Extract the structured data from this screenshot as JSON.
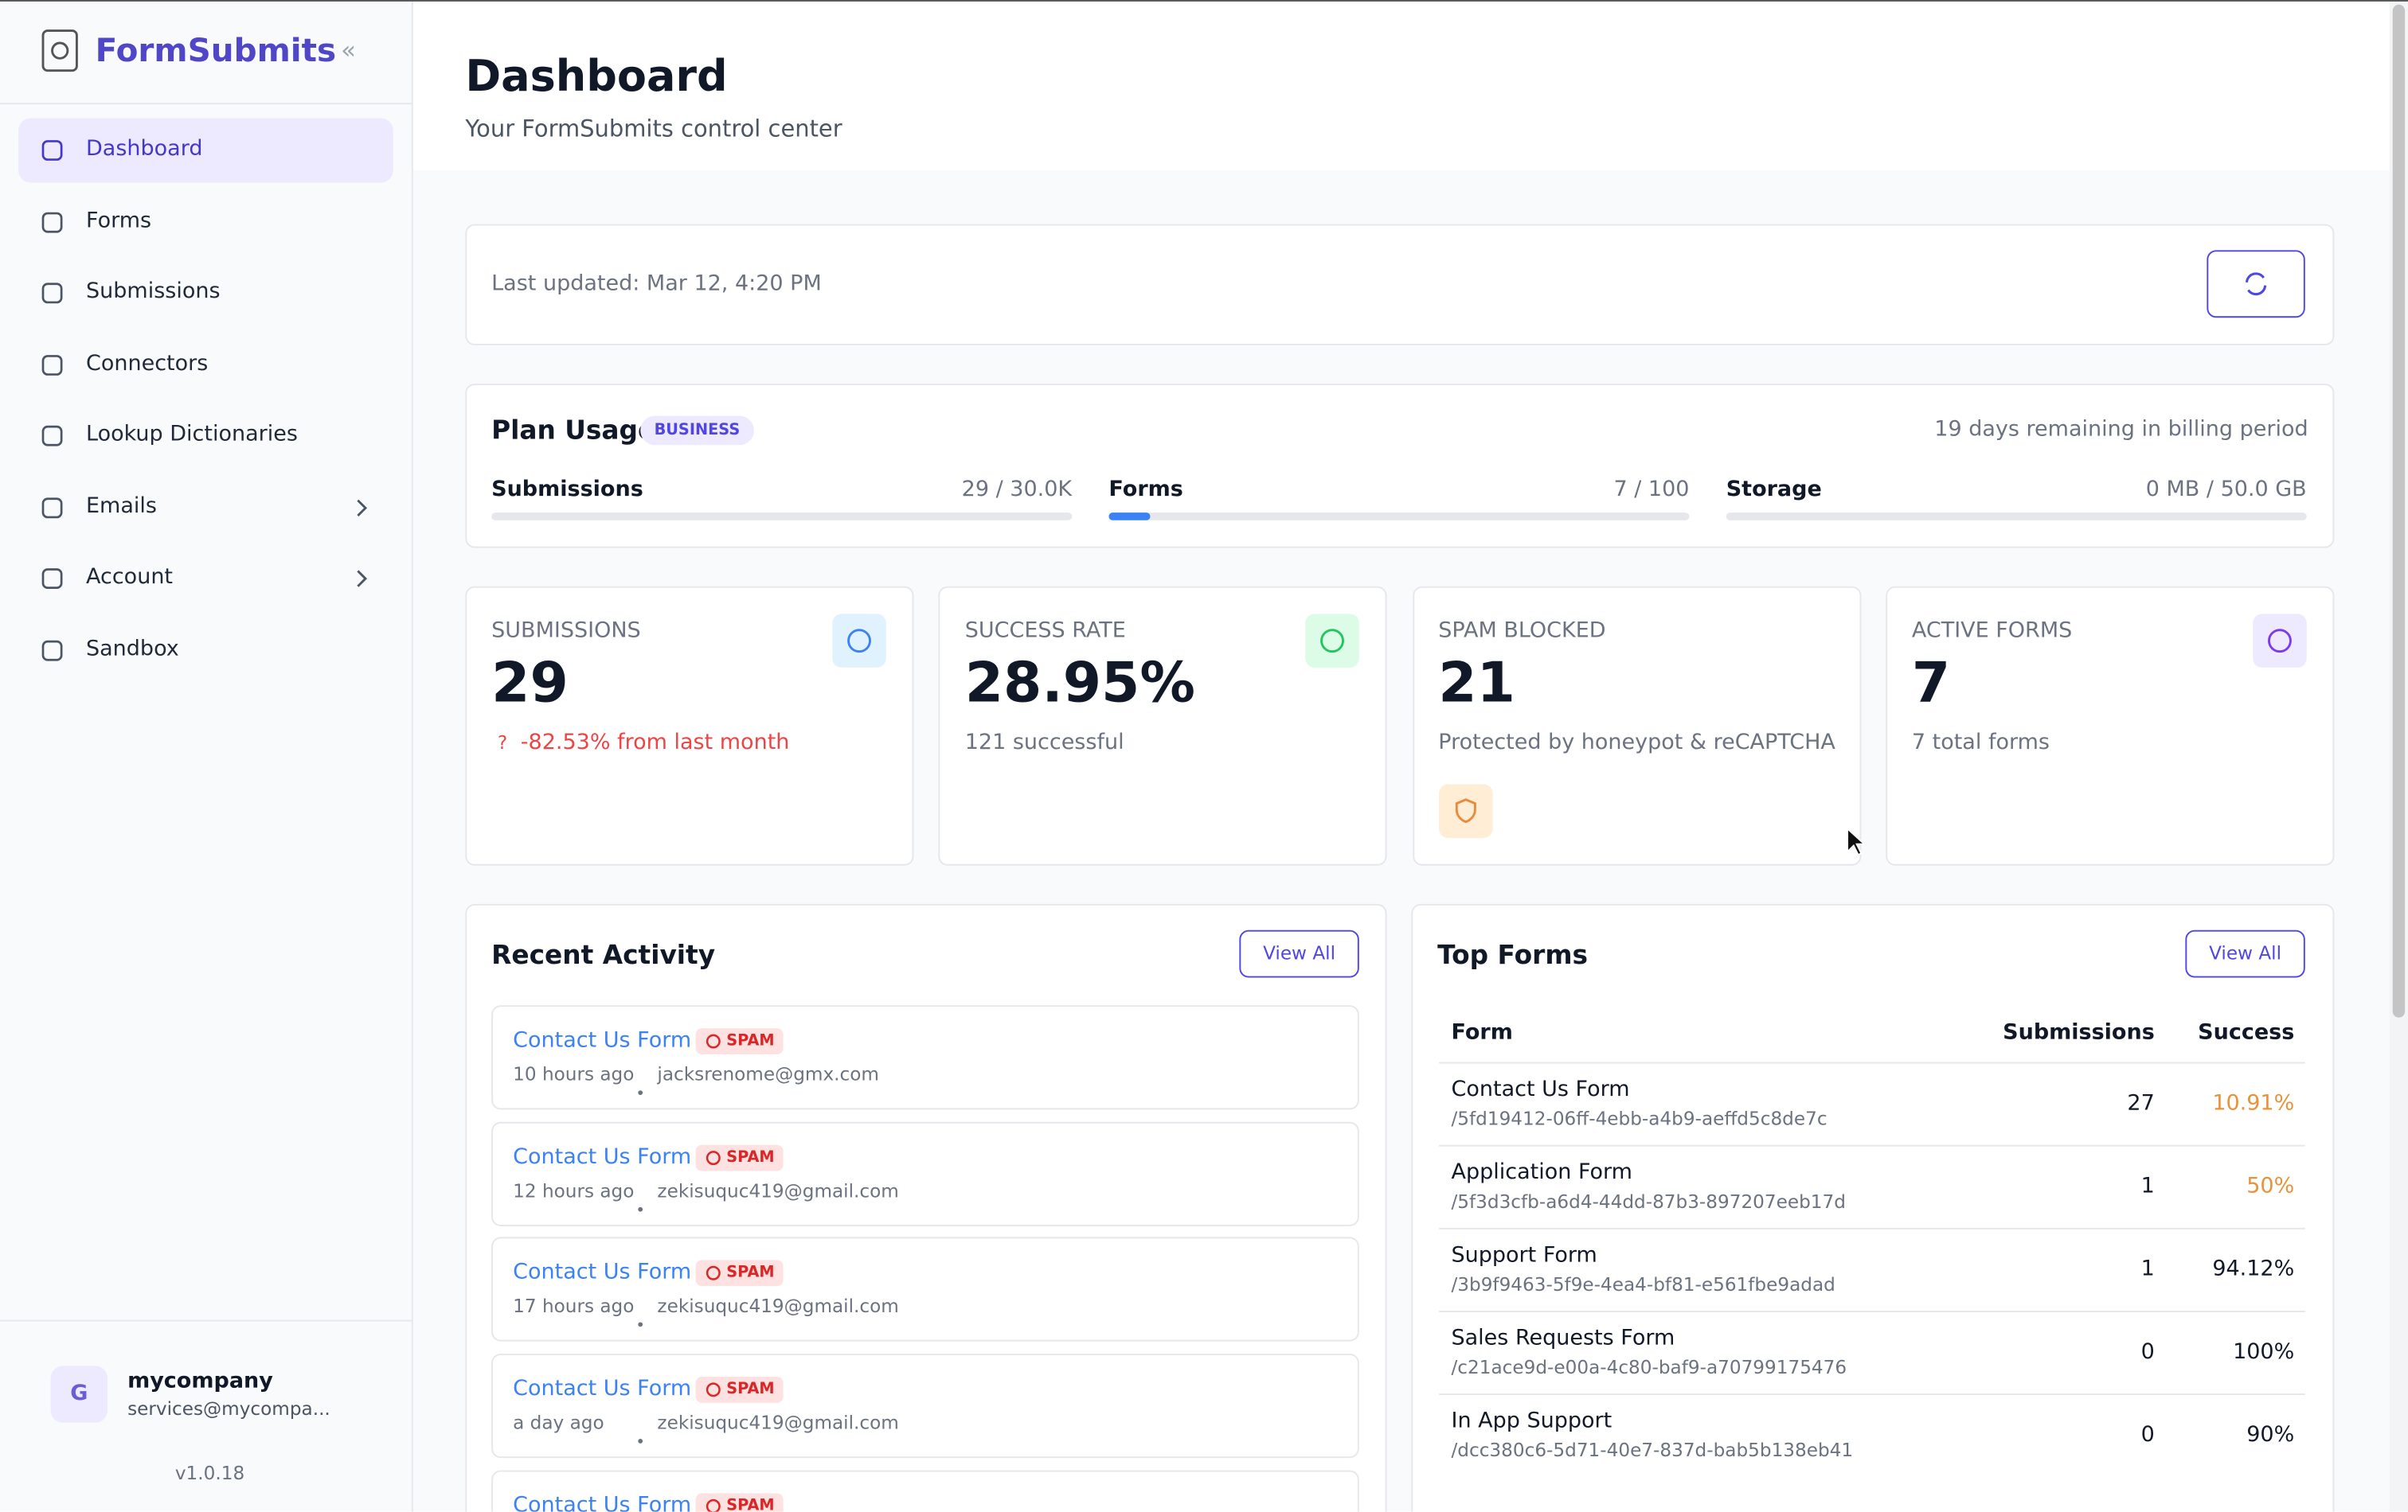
{
  "sidebar": {
    "brand": "FormSubmits",
    "nav": [
      {
        "label": "Dashboard"
      },
      {
        "label": "Forms"
      },
      {
        "label": "Submissions"
      },
      {
        "label": "Connectors"
      },
      {
        "label": "Lookup Dictionaries"
      },
      {
        "label": "Emails"
      },
      {
        "label": "Account"
      },
      {
        "label": "Sandbox"
      }
    ],
    "user": {
      "initial": "G",
      "name": "mycompany",
      "email": "services@mycompa..."
    },
    "version": "v1.0.18"
  },
  "header": {
    "title": "Dashboard",
    "subtitle": "Your FormSubmits control center"
  },
  "last_updated": "Last updated: Mar 12, 4:20 PM",
  "plan": {
    "title": "Plan Usage",
    "badge": "BUSINESS",
    "remaining": "19 days remaining in billing period",
    "items": [
      {
        "label": "Submissions",
        "usage": "29 / 30.0K"
      },
      {
        "label": "Forms",
        "usage": "7 / 100"
      },
      {
        "label": "Storage",
        "usage": "0 MB / 50.0 GB"
      }
    ]
  },
  "stats": [
    {
      "label": "SUBMISSIONS",
      "value": "29",
      "note_icon": "?",
      "note": "-82.53% from last month"
    },
    {
      "label": "SUCCESS RATE",
      "value": "28.95%",
      "note": "121 successful"
    },
    {
      "label": "SPAM BLOCKED",
      "value": "21",
      "note": "Protected by honeypot & reCAPTCHA"
    },
    {
      "label": "ACTIVE FORMS",
      "value": "7",
      "note": "7 total forms"
    }
  ],
  "recent": {
    "title": "Recent Activity",
    "view_all": "View All",
    "items": [
      {
        "form": "Contact Us Form",
        "tag": "SPAM",
        "time": "10 hours ago",
        "email": "jacksrenome@gmx.com"
      },
      {
        "form": "Contact Us Form",
        "tag": "SPAM",
        "time": "12 hours ago",
        "email": "zekisuquc419@gmail.com"
      },
      {
        "form": "Contact Us Form",
        "tag": "SPAM",
        "time": "17 hours ago",
        "email": "zekisuquc419@gmail.com"
      },
      {
        "form": "Contact Us Form",
        "tag": "SPAM",
        "time": "a day ago",
        "email": "zekisuquc419@gmail.com"
      },
      {
        "form": "Contact Us Form",
        "tag": "SPAM"
      }
    ]
  },
  "top_forms": {
    "title": "Top Forms",
    "view_all": "View All",
    "columns": [
      "Form",
      "Submissions",
      "Success"
    ],
    "rows": [
      {
        "name": "Contact Us Form",
        "id": "/5fd19412-06ff-4ebb-a4b9-aeffd5c8de7c",
        "submissions": "27",
        "success": "10.91%",
        "color": "#e8933a"
      },
      {
        "name": "Application Form",
        "id": "/5f3d3cfb-a6d4-44dd-87b3-897207eeb17d",
        "submissions": "1",
        "success": "50%",
        "color": "#e8933a"
      },
      {
        "name": "Support Form",
        "id": "/3b9f9463-5f9e-4ea4-bf81-e561fbe9adad",
        "submissions": "1",
        "success": "94.12%",
        "color": "#111827"
      },
      {
        "name": "Sales Requests Form",
        "id": "/c21ace9d-e00a-4c80-baf9-a70799175476",
        "submissions": "0",
        "success": "100%",
        "color": "#111827"
      },
      {
        "name": "In App Support",
        "id": "/dcc380c6-5d71-40e7-837d-bab5b138eb41",
        "submissions": "0",
        "success": "90%",
        "color": "#111827"
      }
    ]
  }
}
